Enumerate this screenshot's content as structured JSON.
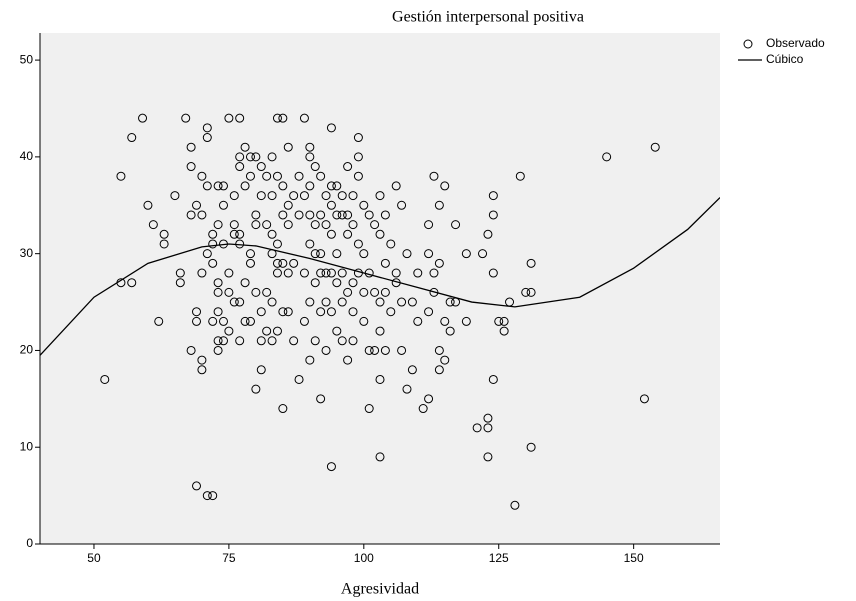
{
  "chart_data": {
    "type": "scatter",
    "title": "Gestión interpersonal positiva",
    "x_label": "Agresividad",
    "xlim": [
      40,
      166
    ],
    "ylim": [
      0,
      52.8
    ],
    "xticks": [
      50,
      75,
      100,
      125,
      150
    ],
    "yticks": [
      0,
      10,
      20,
      30,
      40,
      50
    ],
    "legend": "right",
    "series": [
      {
        "name": "Observado",
        "kind": "points",
        "color": "#000000",
        "x": [
          52,
          55,
          55,
          57,
          57,
          59,
          60,
          61,
          62,
          63,
          63,
          65,
          66,
          66,
          67,
          68,
          68,
          68,
          68,
          69,
          69,
          69,
          69,
          70,
          70,
          70,
          70,
          70,
          71,
          71,
          71,
          71,
          71,
          72,
          72,
          72,
          72,
          72,
          73,
          73,
          73,
          73,
          73,
          73,
          73,
          74,
          74,
          74,
          74,
          74,
          75,
          75,
          75,
          75,
          76,
          76,
          76,
          76,
          77,
          77,
          77,
          77,
          77,
          77,
          77,
          78,
          78,
          78,
          78,
          79,
          79,
          79,
          79,
          79,
          80,
          80,
          80,
          80,
          80,
          81,
          81,
          81,
          81,
          81,
          82,
          82,
          82,
          82,
          83,
          83,
          83,
          83,
          83,
          83,
          84,
          84,
          84,
          84,
          84,
          84,
          85,
          85,
          85,
          85,
          85,
          85,
          86,
          86,
          86,
          86,
          86,
          87,
          87,
          87,
          88,
          88,
          88,
          89,
          89,
          89,
          89,
          90,
          90,
          90,
          90,
          90,
          90,
          90,
          91,
          91,
          91,
          91,
          91,
          92,
          92,
          92,
          92,
          92,
          92,
          93,
          93,
          93,
          93,
          93,
          94,
          94,
          94,
          94,
          94,
          94,
          94,
          95,
          95,
          95,
          95,
          95,
          96,
          96,
          96,
          96,
          96,
          97,
          97,
          97,
          97,
          97,
          98,
          98,
          98,
          98,
          98,
          99,
          99,
          99,
          99,
          99,
          100,
          100,
          100,
          100,
          101,
          101,
          101,
          101,
          102,
          102,
          102,
          103,
          103,
          103,
          103,
          103,
          103,
          104,
          104,
          104,
          104,
          105,
          105,
          106,
          106,
          106,
          107,
          107,
          107,
          108,
          108,
          109,
          109,
          110,
          110,
          111,
          112,
          112,
          112,
          112,
          113,
          113,
          113,
          114,
          114,
          114,
          114,
          115,
          115,
          115,
          116,
          116,
          117,
          117,
          119,
          119,
          121,
          122,
          123,
          123,
          123,
          123,
          124,
          124,
          124,
          124,
          125,
          126,
          126,
          127,
          128,
          129,
          130,
          131,
          131,
          131,
          145,
          152,
          154
        ],
        "values": [
          17,
          38,
          27,
          27,
          42,
          44,
          35,
          33,
          23,
          31,
          32,
          36,
          27,
          28,
          44,
          41,
          39,
          34,
          20,
          35,
          24,
          23,
          6,
          19,
          18,
          28,
          38,
          34,
          43,
          42,
          37,
          30,
          5,
          5,
          32,
          31,
          29,
          23,
          37,
          33,
          27,
          26,
          24,
          21,
          20,
          37,
          35,
          31,
          23,
          21,
          44,
          28,
          26,
          22,
          33,
          32,
          25,
          36,
          40,
          39,
          44,
          32,
          31,
          25,
          21,
          41,
          37,
          27,
          23,
          40,
          38,
          30,
          29,
          23,
          40,
          34,
          33,
          26,
          16,
          39,
          36,
          24,
          21,
          18,
          38,
          33,
          26,
          22,
          40,
          36,
          32,
          30,
          25,
          21,
          44,
          38,
          31,
          29,
          28,
          22,
          44,
          37,
          34,
          29,
          24,
          14,
          41,
          35,
          33,
          28,
          24,
          36,
          29,
          21,
          38,
          34,
          17,
          44,
          36,
          28,
          23,
          41,
          40,
          37,
          34,
          31,
          25,
          19,
          39,
          33,
          30,
          27,
          21,
          38,
          34,
          30,
          28,
          24,
          15,
          36,
          33,
          28,
          25,
          20,
          43,
          37,
          35,
          32,
          28,
          24,
          8,
          37,
          34,
          30,
          27,
          22,
          36,
          34,
          28,
          25,
          21,
          39,
          34,
          32,
          26,
          19,
          36,
          33,
          27,
          24,
          21,
          42,
          40,
          38,
          31,
          28,
          35,
          30,
          26,
          23,
          34,
          28,
          20,
          14,
          33,
          26,
          20,
          36,
          32,
          25,
          22,
          17,
          9,
          34,
          29,
          26,
          20,
          31,
          24,
          37,
          28,
          27,
          35,
          25,
          20,
          30,
          16,
          25,
          18,
          28,
          23,
          14,
          33,
          30,
          24,
          15,
          38,
          28,
          26,
          35,
          29,
          20,
          18,
          37,
          23,
          19,
          25,
          22,
          33,
          25,
          30,
          23,
          12,
          30,
          32,
          13,
          12,
          9,
          36,
          34,
          28,
          17,
          23,
          23,
          22,
          25,
          4,
          38,
          26,
          26,
          29,
          10,
          40,
          15,
          41
        ]
      },
      {
        "name": "Cúbico",
        "kind": "line",
        "color": "#000000",
        "x": [
          40,
          50,
          60,
          70,
          75,
          80,
          90,
          100,
          110,
          120,
          128,
          140,
          150,
          160,
          166
        ],
        "values": [
          19.5,
          25.5,
          29,
          30.7,
          31,
          30.8,
          29.5,
          28,
          26.5,
          25,
          24.5,
          25.5,
          28.5,
          32.5,
          35.8
        ]
      }
    ]
  }
}
